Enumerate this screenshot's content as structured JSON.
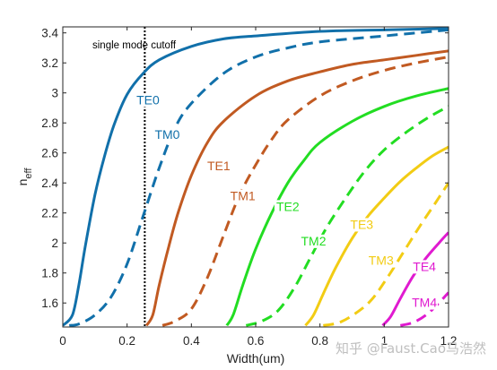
{
  "chart_data": {
    "type": "line",
    "xlabel": "Width(um)",
    "ylabel_main": "n",
    "ylabel_sub": "eff",
    "xlim": [
      0,
      1.2
    ],
    "ylim": [
      1.44,
      3.44
    ],
    "xticks": [
      "0",
      "0.2",
      "0.4",
      "0.6",
      "0.8",
      "1",
      "1.2"
    ],
    "yticks": [
      "1.6",
      "1.8",
      "2",
      "2.2",
      "2.4",
      "2.6",
      "2.8",
      "3",
      "3.2",
      "3.4"
    ],
    "grid": false,
    "cutoff": {
      "x": 0.255,
      "label": "single mode cutoff"
    },
    "series": [
      {
        "name": "TE0",
        "color": "#1170aa",
        "style": "solid",
        "points": [
          [
            0,
            1.45
          ],
          [
            0.03,
            1.52
          ],
          [
            0.05,
            1.72
          ],
          [
            0.07,
            1.98
          ],
          [
            0.1,
            2.32
          ],
          [
            0.13,
            2.58
          ],
          [
            0.16,
            2.79
          ],
          [
            0.2,
            2.99
          ],
          [
            0.25,
            3.13
          ],
          [
            0.3,
            3.22
          ],
          [
            0.4,
            3.31
          ],
          [
            0.5,
            3.36
          ],
          [
            0.6,
            3.38
          ],
          [
            0.8,
            3.41
          ],
          [
            1.0,
            3.42
          ],
          [
            1.2,
            3.43
          ]
        ]
      },
      {
        "name": "TM0",
        "color": "#1170aa",
        "style": "dashed",
        "points": [
          [
            0.02,
            1.45
          ],
          [
            0.05,
            1.46
          ],
          [
            0.1,
            1.52
          ],
          [
            0.15,
            1.64
          ],
          [
            0.2,
            1.86
          ],
          [
            0.25,
            2.18
          ],
          [
            0.3,
            2.5
          ],
          [
            0.35,
            2.77
          ],
          [
            0.4,
            2.93
          ],
          [
            0.5,
            3.13
          ],
          [
            0.6,
            3.24
          ],
          [
            0.7,
            3.3
          ],
          [
            0.8,
            3.34
          ],
          [
            1.0,
            3.38
          ],
          [
            1.2,
            3.42
          ]
        ]
      },
      {
        "name": "TE1",
        "color": "#c15a22",
        "style": "solid",
        "points": [
          [
            0.26,
            1.45
          ],
          [
            0.28,
            1.52
          ],
          [
            0.3,
            1.72
          ],
          [
            0.33,
            1.98
          ],
          [
            0.36,
            2.21
          ],
          [
            0.4,
            2.45
          ],
          [
            0.45,
            2.67
          ],
          [
            0.5,
            2.81
          ],
          [
            0.6,
            2.98
          ],
          [
            0.7,
            3.08
          ],
          [
            0.8,
            3.14
          ],
          [
            0.9,
            3.19
          ],
          [
            1.0,
            3.22
          ],
          [
            1.1,
            3.25
          ],
          [
            1.2,
            3.28
          ]
        ]
      },
      {
        "name": "TM1",
        "color": "#c15a22",
        "style": "dashed",
        "points": [
          [
            0.31,
            1.45
          ],
          [
            0.35,
            1.48
          ],
          [
            0.4,
            1.56
          ],
          [
            0.45,
            1.77
          ],
          [
            0.5,
            2.05
          ],
          [
            0.55,
            2.32
          ],
          [
            0.6,
            2.52
          ],
          [
            0.65,
            2.69
          ],
          [
            0.7,
            2.82
          ],
          [
            0.8,
            2.98
          ],
          [
            0.9,
            3.08
          ],
          [
            1.0,
            3.15
          ],
          [
            1.1,
            3.2
          ],
          [
            1.2,
            3.24
          ]
        ]
      },
      {
        "name": "TE2",
        "color": "#22dd22",
        "style": "solid",
        "points": [
          [
            0.51,
            1.45
          ],
          [
            0.53,
            1.52
          ],
          [
            0.56,
            1.72
          ],
          [
            0.6,
            1.96
          ],
          [
            0.65,
            2.2
          ],
          [
            0.7,
            2.4
          ],
          [
            0.75,
            2.55
          ],
          [
            0.8,
            2.67
          ],
          [
            0.9,
            2.81
          ],
          [
            1.0,
            2.91
          ],
          [
            1.1,
            2.98
          ],
          [
            1.2,
            3.03
          ]
        ]
      },
      {
        "name": "TM2",
        "color": "#22dd22",
        "style": "dashed",
        "points": [
          [
            0.57,
            1.45
          ],
          [
            0.62,
            1.48
          ],
          [
            0.67,
            1.55
          ],
          [
            0.72,
            1.7
          ],
          [
            0.77,
            1.9
          ],
          [
            0.82,
            2.1
          ],
          [
            0.88,
            2.3
          ],
          [
            0.94,
            2.48
          ],
          [
            1.0,
            2.62
          ],
          [
            1.07,
            2.74
          ],
          [
            1.14,
            2.84
          ],
          [
            1.2,
            2.91
          ]
        ]
      },
      {
        "name": "TE3",
        "color": "#f2cc14",
        "style": "solid",
        "points": [
          [
            0.755,
            1.45
          ],
          [
            0.78,
            1.52
          ],
          [
            0.81,
            1.66
          ],
          [
            0.85,
            1.84
          ],
          [
            0.9,
            2.03
          ],
          [
            0.95,
            2.18
          ],
          [
            1.0,
            2.3
          ],
          [
            1.05,
            2.41
          ],
          [
            1.1,
            2.5
          ],
          [
            1.15,
            2.58
          ],
          [
            1.2,
            2.64
          ]
        ]
      },
      {
        "name": "TM3",
        "color": "#f2cc14",
        "style": "dashed",
        "points": [
          [
            0.81,
            1.45
          ],
          [
            0.86,
            1.47
          ],
          [
            0.91,
            1.53
          ],
          [
            0.96,
            1.62
          ],
          [
            1.01,
            1.77
          ],
          [
            1.06,
            1.94
          ],
          [
            1.11,
            2.11
          ],
          [
            1.16,
            2.27
          ],
          [
            1.2,
            2.4
          ]
        ]
      },
      {
        "name": "TE4",
        "color": "#e01ad0",
        "style": "solid",
        "points": [
          [
            0.995,
            1.45
          ],
          [
            1.02,
            1.51
          ],
          [
            1.05,
            1.63
          ],
          [
            1.09,
            1.78
          ],
          [
            1.13,
            1.9
          ],
          [
            1.17,
            2.0
          ],
          [
            1.2,
            2.07
          ]
        ]
      },
      {
        "name": "TM4",
        "color": "#e01ad0",
        "style": "dashed",
        "points": [
          [
            1.05,
            1.45
          ],
          [
            1.09,
            1.47
          ],
          [
            1.13,
            1.52
          ],
          [
            1.17,
            1.6
          ],
          [
            1.2,
            1.67
          ]
        ]
      }
    ],
    "labels": [
      {
        "text": "TE0",
        "series": "TE0",
        "x": 0.265,
        "y": 2.93
      },
      {
        "text": "TM0",
        "series": "TM0",
        "x": 0.325,
        "y": 2.7
      },
      {
        "text": "TE1",
        "series": "TE1",
        "x": 0.485,
        "y": 2.49
      },
      {
        "text": "TM1",
        "series": "TM1",
        "x": 0.56,
        "y": 2.29
      },
      {
        "text": "TE2",
        "series": "TE2",
        "x": 0.7,
        "y": 2.22
      },
      {
        "text": "TM2",
        "series": "TM2",
        "x": 0.78,
        "y": 1.99
      },
      {
        "text": "TE3",
        "series": "TE3",
        "x": 0.93,
        "y": 2.1
      },
      {
        "text": "TM3",
        "series": "TM3",
        "x": 0.99,
        "y": 1.86
      },
      {
        "text": "TE4",
        "series": "TE4",
        "x": 1.125,
        "y": 1.82
      },
      {
        "text": "TM4",
        "series": "TM4",
        "x": 1.125,
        "y": 1.58
      }
    ]
  },
  "watermark": "知乎 @Faust.Cao马浩然"
}
